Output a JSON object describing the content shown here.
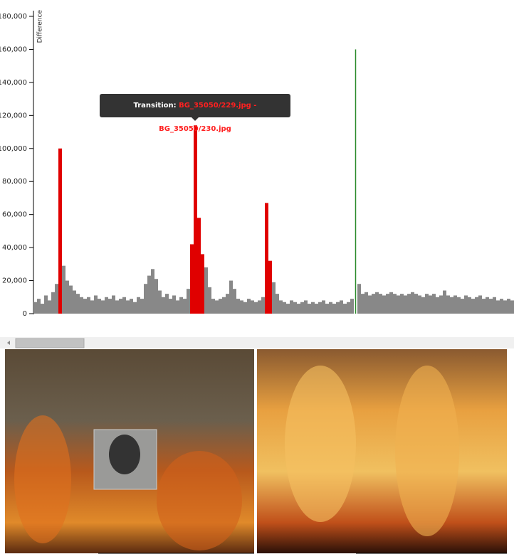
{
  "chart_data": {
    "type": "bar",
    "y_label": "Difference",
    "ylim": [
      0,
      180000
    ],
    "yticks": [
      0,
      {
        "value": 20000,
        "label": "20,000"
      },
      {
        "value": 40000,
        "label": "40,000"
      },
      {
        "value": 60000,
        "label": "60,000"
      },
      {
        "value": 80000,
        "label": "80,000"
      },
      {
        "value": 100000,
        "label": "100,000"
      },
      {
        "value": 120000,
        "label": "120,000"
      },
      {
        "value": 140000,
        "label": "140,000"
      },
      {
        "value": 160000,
        "label": "160,000"
      },
      {
        "value": 180000,
        "label": "180,000"
      }
    ],
    "values": [
      7000,
      9000,
      6000,
      11000,
      8000,
      13000,
      18000,
      100000,
      29000,
      20000,
      17000,
      14000,
      12000,
      10000,
      9000,
      10000,
      8000,
      11000,
      9000,
      8000,
      10000,
      9000,
      11000,
      8000,
      9000,
      10000,
      8000,
      9000,
      7000,
      10000,
      9000,
      18000,
      23000,
      27000,
      21000,
      14000,
      10000,
      12000,
      9000,
      11000,
      8000,
      10000,
      9000,
      15000,
      42000,
      114000,
      58000,
      36000,
      28000,
      16000,
      9000,
      8000,
      9000,
      10000,
      12000,
      20000,
      15000,
      9000,
      8000,
      7000,
      9000,
      8000,
      7000,
      8000,
      10000,
      67000,
      32000,
      19000,
      12000,
      8000,
      7000,
      6000,
      8000,
      7000,
      6000,
      7000,
      8000,
      6000,
      7000,
      6000,
      7000,
      8000,
      6000,
      7000,
      6000,
      7000,
      8000,
      6000,
      7000,
      9000,
      160000,
      18000,
      12000,
      13000,
      11000,
      12000,
      13000,
      12000,
      11000,
      12000,
      13000,
      12000,
      11000,
      12000,
      11000,
      12000,
      13000,
      12000,
      11000,
      10000,
      12000,
      11000,
      12000,
      10000,
      11000,
      14000,
      11000,
      10000,
      11000,
      10000,
      9000,
      11000,
      10000,
      9000,
      10000,
      11000,
      9000,
      10000,
      9000,
      10000,
      8000,
      9000,
      8000,
      9000,
      8000
    ],
    "colors": [
      "#888",
      "#888",
      "#888",
      "#888",
      "#888",
      "#888",
      "#888",
      "#e00000",
      "#888",
      "#888",
      "#888",
      "#888",
      "#888",
      "#888",
      "#888",
      "#888",
      "#888",
      "#888",
      "#888",
      "#888",
      "#888",
      "#888",
      "#888",
      "#888",
      "#888",
      "#888",
      "#888",
      "#888",
      "#888",
      "#888",
      "#888",
      "#888",
      "#888",
      "#888",
      "#888",
      "#888",
      "#888",
      "#888",
      "#888",
      "#888",
      "#888",
      "#888",
      "#888",
      "#888",
      "#e00000",
      "#e00000",
      "#e00000",
      "#e00000",
      "#888",
      "#888",
      "#888",
      "#888",
      "#888",
      "#888",
      "#888",
      "#888",
      "#888",
      "#888",
      "#888",
      "#888",
      "#888",
      "#888",
      "#888",
      "#888",
      "#888",
      "#e00000",
      "#e00000",
      "#888",
      "#888",
      "#888",
      "#888",
      "#888",
      "#888",
      "#888",
      "#888",
      "#888",
      "#888",
      "#888",
      "#888",
      "#888",
      "#888",
      "#888",
      "#888",
      "#888",
      "#888",
      "#888",
      "#888",
      "#888",
      "#888",
      "#888",
      "#2a8a2a",
      "#888",
      "#888",
      "#888",
      "#888",
      "#888",
      "#888",
      "#888",
      "#888",
      "#888",
      "#888",
      "#888",
      "#888",
      "#888",
      "#888",
      "#888",
      "#888",
      "#888",
      "#888",
      "#888",
      "#888",
      "#888",
      "#888",
      "#888",
      "#888",
      "#888",
      "#888",
      "#888",
      "#888",
      "#888",
      "#888",
      "#888",
      "#888",
      "#888",
      "#888",
      "#888",
      "#888",
      "#888",
      "#888",
      "#888",
      "#888",
      "#888",
      "#888",
      "#888",
      "#888"
    ],
    "tooltip": {
      "label": "Transition:",
      "text": "BG_35050/229.jpg - BG_35050/230.jpg"
    }
  }
}
